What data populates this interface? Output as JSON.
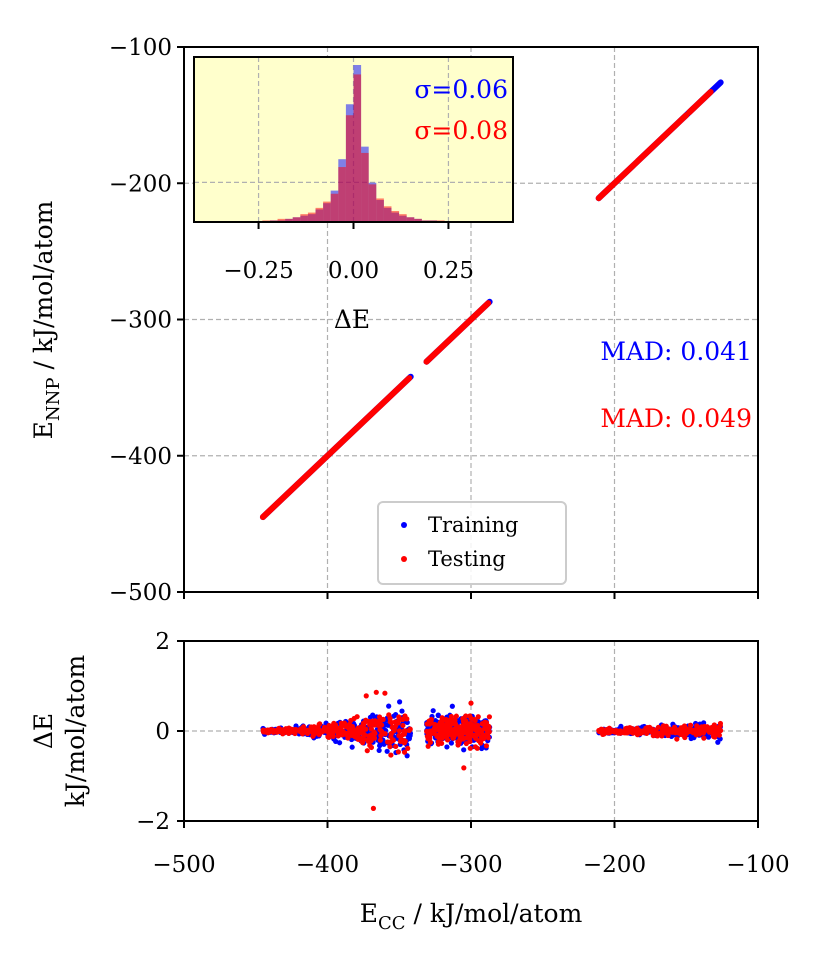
{
  "chart_data": [
    {
      "name": "main-parity",
      "type": "scatter",
      "ylabel": {
        "main": "E",
        "sub": "NNP",
        "rest": " / kJ/mol/atom"
      },
      "xlim": [
        -500,
        -100
      ],
      "ylim": [
        -500,
        -100
      ],
      "xticks": [
        -500,
        -400,
        -300,
        -200,
        -100
      ],
      "yticks": [
        -500,
        -400,
        -300,
        -200,
        -100
      ],
      "ytick_labels": [
        "−500",
        "−400",
        "−300",
        "−200",
        "−100"
      ],
      "grid": true,
      "series": [
        {
          "name": "Training",
          "color": "#0000ff",
          "segments": [
            [
              -445,
              -342
            ],
            [
              -331,
              -287
            ],
            [
              -211,
              -126
            ]
          ]
        },
        {
          "name": "Testing",
          "color": "#ff0000",
          "segments": [
            [
              -445,
              -343
            ],
            [
              -331,
              -288
            ],
            [
              -211,
              -150
            ],
            [
              -148,
              -133
            ]
          ]
        }
      ],
      "legend": {
        "position": "lower-center",
        "entries": [
          "Training",
          "Testing"
        ]
      },
      "annotations": [
        {
          "text": "MAD: 0.041",
          "color": "#0000ff"
        },
        {
          "text": "MAD: 0.049",
          "color": "#ff0000"
        }
      ]
    },
    {
      "name": "inset-histogram",
      "type": "histogram",
      "xlabel": "ΔE",
      "xlim": [
        -0.42,
        0.42
      ],
      "xticks": [
        -0.25,
        0,
        0.25
      ],
      "xtick_labels": [
        "−0.25",
        "0.00",
        "0.25"
      ],
      "background": "#ffffcc",
      "bin_edges_range": [
        -0.4,
        0.4
      ],
      "bin_width": 0.02,
      "series": [
        {
          "name": "Training",
          "color": "#0000ff",
          "sigma_label": "σ=0.06",
          "counts": [
            0,
            0,
            0,
            0,
            0,
            0,
            0,
            0,
            0,
            1,
            1,
            2,
            3,
            4,
            5,
            8,
            12,
            20,
            40,
            75,
            100,
            48,
            25,
            14,
            9,
            6,
            4,
            3,
            2,
            1,
            1,
            0,
            0,
            0,
            0,
            0,
            0,
            0,
            0,
            0
          ]
        },
        {
          "name": "Testing",
          "color": "#ff0000",
          "sigma_label": "σ=0.08",
          "counts": [
            0,
            0,
            0,
            0,
            0,
            0,
            0,
            0,
            1,
            1,
            2,
            2,
            3,
            5,
            6,
            9,
            13,
            18,
            35,
            68,
            94,
            44,
            24,
            15,
            10,
            7,
            5,
            3,
            2,
            1,
            1,
            1,
            0,
            0,
            0,
            0,
            0,
            0,
            0,
            0
          ]
        }
      ]
    },
    {
      "name": "residual-plot",
      "type": "scatter",
      "xlabel": {
        "main": "E",
        "sub": "CC",
        "rest": " / kJ/mol/atom"
      },
      "ylabel": {
        "line1": "ΔE",
        "line2": "kJ/mol/atom"
      },
      "xlim": [
        -500,
        -100
      ],
      "ylim": [
        -2,
        2
      ],
      "xticks": [
        -500,
        -400,
        -300,
        -200,
        -100
      ],
      "xtick_labels": [
        "−500",
        "−400",
        "−300",
        "−200",
        "−100"
      ],
      "yticks": [
        -2,
        0,
        2
      ],
      "ytick_labels": [
        "−2",
        "0",
        "2"
      ],
      "grid": true,
      "clusters": [
        {
          "range": [
            -445,
            -342
          ],
          "spread": [
            0.05,
            0.6
          ],
          "count": 340
        },
        {
          "range": [
            -331,
            -287
          ],
          "spread": [
            0.35,
            0.35
          ],
          "count": 260
        },
        {
          "range": [
            -211,
            -126
          ],
          "spread": [
            0.05,
            0.2
          ],
          "count": 260
        }
      ],
      "outliers": [
        {
          "x": -368,
          "y": -1.72,
          "series": "Testing"
        },
        {
          "x": -366,
          "y": 0.86,
          "series": "Testing"
        },
        {
          "x": -360,
          "y": 0.84,
          "series": "Testing"
        },
        {
          "x": -373,
          "y": 0.78,
          "series": "Testing"
        },
        {
          "x": -305,
          "y": -0.82,
          "series": "Testing"
        },
        {
          "x": -300,
          "y": 0.62,
          "series": "Testing"
        },
        {
          "x": -313,
          "y": 0.55,
          "series": "Training"
        },
        {
          "x": -128,
          "y": -0.25,
          "series": "Training"
        }
      ]
    }
  ]
}
